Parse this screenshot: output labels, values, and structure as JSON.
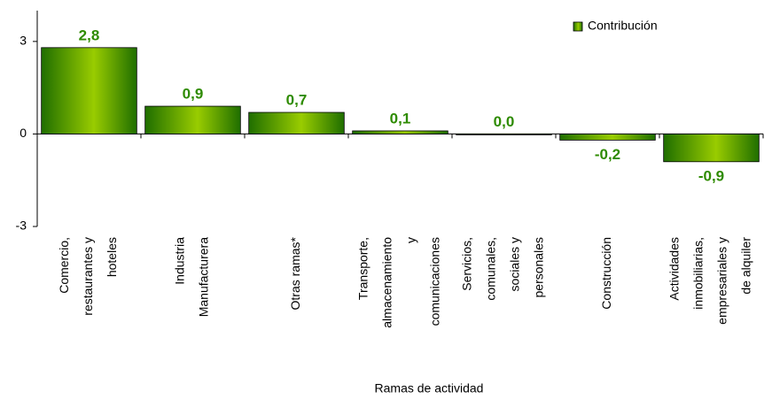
{
  "chart_data": {
    "type": "bar",
    "categories": [
      [
        "Comercio,",
        "restaurantes y",
        "hoteles"
      ],
      [
        "Industria",
        "Manufacturera"
      ],
      [
        "Otras ramas*"
      ],
      [
        "Transporte,",
        "almacenamiento",
        "y",
        "comunicaciones"
      ],
      [
        "Servicios,",
        "comunales,",
        "sociales y",
        "personales"
      ],
      [
        "Construcción"
      ],
      [
        "Actividades",
        "inmobiliarias,",
        "empresariales y",
        "de alquiler"
      ]
    ],
    "series": [
      {
        "name": "Contribución",
        "color": "#99cc00",
        "values": [
          2.8,
          0.9,
          0.7,
          0.1,
          0.0,
          -0.2,
          -0.9
        ],
        "value_labels": [
          "2,8",
          "0,9",
          "0,7",
          "0,1",
          "0,0",
          "-0,2",
          "-0,9"
        ]
      }
    ],
    "ylim": [
      -3,
      4
    ],
    "yticks": [
      -3,
      0,
      3
    ],
    "x_label": "Ramas de actividad",
    "legend": "top-right",
    "grid": false
  }
}
